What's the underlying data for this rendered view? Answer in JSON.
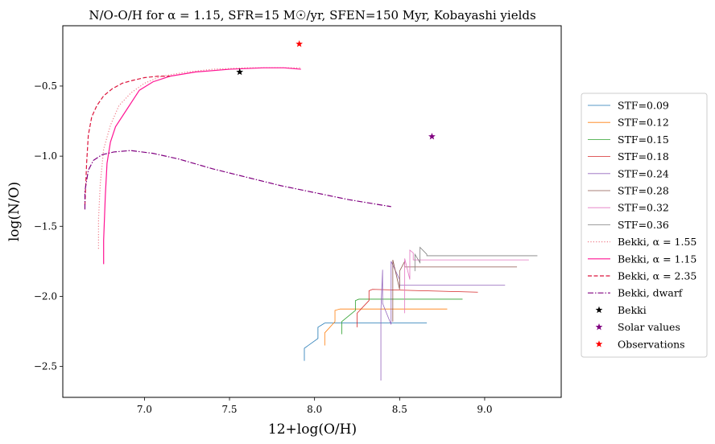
{
  "chart_data": {
    "type": "line",
    "title": "N/O-O/H for α = 1.15, SFR=15 M☉/yr, SFEN=150 Myr, Kobayashi yields",
    "xlabel": "12+log(O/H)",
    "ylabel": "log(N/O)",
    "xlim": [
      6.52,
      9.45
    ],
    "ylim": [
      -2.72,
      -0.07
    ],
    "xticks": [
      7.0,
      7.5,
      8.0,
      8.5,
      9.0
    ],
    "xtick_labels": [
      "7.0",
      "7.5",
      "8.0",
      "8.5",
      "9.0"
    ],
    "yticks": [
      -2.5,
      -2.0,
      -1.5,
      -1.0,
      -0.5
    ],
    "ytick_labels": [
      "−2.5",
      "−2.0",
      "−1.5",
      "−1.0",
      "−0.5"
    ],
    "grid": false,
    "legend_position": "right-outside",
    "series": [
      {
        "name": "STF=0.09",
        "color": "#1f77b4",
        "style": "solid",
        "width": 0.8,
        "x": [
          7.94,
          7.94,
          8.02,
          8.02,
          8.06,
          8.06,
          8.66
        ],
        "y": [
          -2.46,
          -2.37,
          -2.3,
          -2.22,
          -2.19,
          -2.19,
          -2.19
        ]
      },
      {
        "name": "STF=0.12",
        "color": "#ff7f0e",
        "style": "solid",
        "width": 0.8,
        "x": [
          8.06,
          8.06,
          8.12,
          8.12,
          8.15,
          8.15,
          8.78
        ],
        "y": [
          -2.35,
          -2.26,
          -2.18,
          -2.1,
          -2.09,
          -2.09,
          -2.09
        ]
      },
      {
        "name": "STF=0.15",
        "color": "#2ca02c",
        "style": "solid",
        "width": 0.8,
        "x": [
          8.16,
          8.16,
          8.24,
          8.24,
          8.26,
          8.26,
          8.87
        ],
        "y": [
          -2.27,
          -2.18,
          -2.1,
          -2.03,
          -2.02,
          -2.02,
          -2.02
        ]
      },
      {
        "name": "STF=0.18",
        "color": "#d62728",
        "style": "solid",
        "width": 0.8,
        "x": [
          8.25,
          8.25,
          8.32,
          8.32,
          8.34,
          8.34,
          8.96
        ],
        "y": [
          -2.22,
          -2.12,
          -2.03,
          -1.96,
          -1.95,
          -1.95,
          -1.97
        ]
      },
      {
        "name": "STF=0.24",
        "color": "#9467bd",
        "style": "solid",
        "width": 0.8,
        "x": [
          8.39,
          8.39,
          8.4,
          8.4,
          8.45,
          8.45,
          8.5,
          8.5,
          9.12
        ],
        "y": [
          -2.6,
          -2.1,
          -1.81,
          -2.05,
          -2.2,
          -1.75,
          -1.88,
          -1.92,
          -1.92
        ]
      },
      {
        "name": "STF=0.28",
        "color": "#8c564b",
        "style": "solid",
        "width": 0.8,
        "x": [
          8.46,
          8.46,
          8.5,
          8.5,
          8.53,
          8.53,
          9.19
        ],
        "y": [
          -2.18,
          -1.74,
          -1.95,
          -1.82,
          -1.75,
          -1.79,
          -1.79
        ]
      },
      {
        "name": "STF=0.32",
        "color": "#e377c2",
        "style": "solid",
        "width": 0.8,
        "x": [
          8.53,
          8.53,
          8.56,
          8.56,
          8.58,
          8.58,
          9.26
        ],
        "y": [
          -2.12,
          -1.73,
          -1.88,
          -1.67,
          -1.69,
          -1.74,
          -1.74
        ]
      },
      {
        "name": "STF=0.36",
        "color": "#7f7f7f",
        "style": "solid",
        "width": 0.8,
        "x": [
          8.59,
          8.59,
          8.62,
          8.62,
          8.66,
          8.66,
          9.31
        ],
        "y": [
          -1.82,
          -1.7,
          -1.76,
          -1.65,
          -1.7,
          -1.71,
          -1.71
        ]
      },
      {
        "name": "Bekki, α = 1.55",
        "color": "#f07e8a",
        "style": "dotted",
        "width": 1.2,
        "x": [
          6.73,
          6.73,
          6.74,
          6.76,
          6.8,
          6.85,
          6.92,
          7.0,
          7.1,
          7.25,
          7.4,
          7.6,
          7.8,
          7.92
        ],
        "y": [
          -1.66,
          -1.45,
          -1.2,
          -0.95,
          -0.78,
          -0.64,
          -0.55,
          -0.48,
          -0.43,
          -0.4,
          -0.38,
          -0.37,
          -0.37,
          -0.37
        ]
      },
      {
        "name": "Bekki, α = 1.15",
        "color": "#ff1493",
        "style": "solid",
        "width": 1.2,
        "x": [
          6.76,
          6.76,
          6.77,
          6.78,
          6.8,
          6.83,
          6.9,
          6.97,
          7.05,
          7.15,
          7.3,
          7.5,
          7.7,
          7.82,
          7.92
        ],
        "y": [
          -1.77,
          -1.6,
          -1.28,
          -1.05,
          -0.9,
          -0.79,
          -0.66,
          -0.53,
          -0.47,
          -0.43,
          -0.4,
          -0.38,
          -0.37,
          -0.37,
          -0.38
        ]
      },
      {
        "name": "Bekki, α = 2.35",
        "color": "#dc143c",
        "style": "dashed",
        "width": 1.2,
        "x": [
          6.65,
          6.66,
          6.67,
          6.69,
          6.72,
          6.76,
          6.81,
          6.87,
          6.93,
          7.0,
          7.08,
          7.15
        ],
        "y": [
          -1.35,
          -1.05,
          -0.85,
          -0.72,
          -0.64,
          -0.57,
          -0.52,
          -0.48,
          -0.46,
          -0.44,
          -0.43,
          -0.43
        ]
      },
      {
        "name": "Bekki, dwarf",
        "color": "#800080",
        "style": "dashdot",
        "width": 1.2,
        "x": [
          6.65,
          6.65,
          6.67,
          6.7,
          6.75,
          6.82,
          6.92,
          7.05,
          7.2,
          7.4,
          7.6,
          7.8,
          8.0,
          8.2,
          8.45
        ],
        "y": [
          -1.38,
          -1.25,
          -1.1,
          -1.03,
          -0.99,
          -0.97,
          -0.96,
          -0.98,
          -1.02,
          -1.09,
          -1.15,
          -1.21,
          -1.26,
          -1.31,
          -1.36
        ]
      }
    ],
    "points": [
      {
        "name": "Bekki",
        "color": "#000000",
        "x": 7.56,
        "y": -0.4
      },
      {
        "name": "Solar values",
        "color": "#800080",
        "x": 8.69,
        "y": -0.86
      },
      {
        "name": "Observations",
        "color": "#ff0000",
        "x": 7.91,
        "y": -0.2
      }
    ]
  }
}
